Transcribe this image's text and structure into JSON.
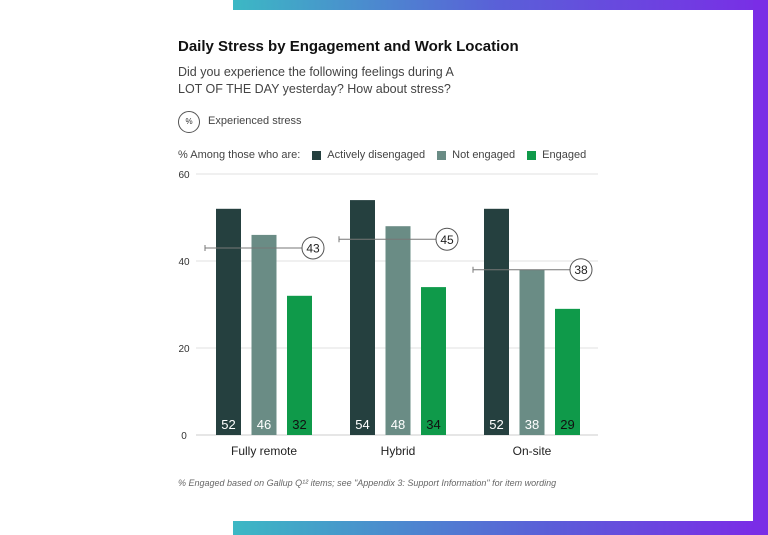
{
  "chart_data": {
    "type": "bar",
    "title": "Daily Stress by Engagement and Work Location",
    "subtitle": "Did you experience the following feelings during A LOT OF THE DAY yesterday? How about stress?",
    "measure_label": "Experienced stress",
    "measure_icon": "%",
    "legend_prefix": "% Among those who are:",
    "categories": [
      "Fully remote",
      "Hybrid",
      "On-site"
    ],
    "series": [
      {
        "name": "Actively disengaged",
        "color": "#25403f",
        "values": [
          52,
          54,
          52
        ]
      },
      {
        "name": "Not engaged",
        "color": "#6a8c85",
        "values": [
          46,
          48,
          38
        ]
      },
      {
        "name": "Engaged",
        "color": "#0f9a4a",
        "values": [
          32,
          34,
          29
        ]
      }
    ],
    "overall": [
      43,
      45,
      38
    ],
    "yticks": [
      0,
      20,
      40,
      60
    ],
    "ylim": [
      0,
      60
    ],
    "grid": true,
    "legend_placement": "top",
    "footnote": "% Engaged based on Gallup Q¹² items; see \"Appendix 3: Support Information\" for item wording"
  }
}
